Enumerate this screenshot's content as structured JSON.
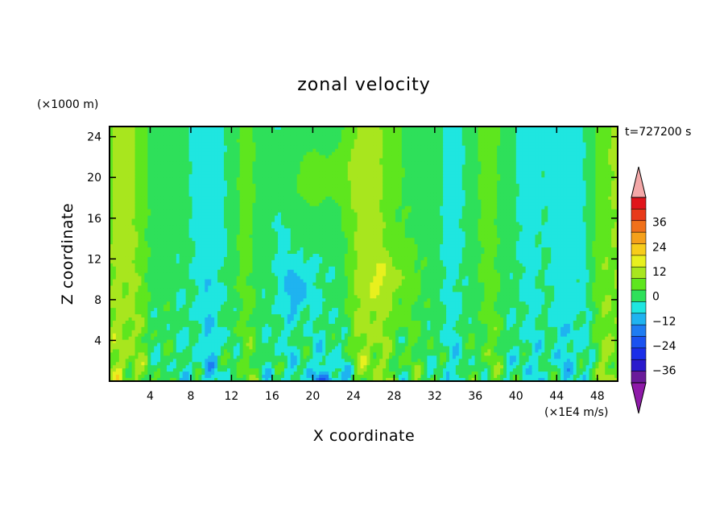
{
  "chart_data": {
    "type": "heatmap",
    "title": "zonal velocity",
    "xlabel": "X coordinate",
    "ylabel": "Z coordinate",
    "x_scale_note": "(×1E4 m/s)",
    "y_scale_note": "(×1000 m)",
    "time_label": "t=727200 s",
    "x_ticks": [
      4,
      8,
      12,
      16,
      20,
      24,
      28,
      32,
      36,
      40,
      44,
      48
    ],
    "y_ticks": [
      4,
      8,
      12,
      16,
      20,
      24
    ],
    "xlim": [
      0,
      50
    ],
    "ylim": [
      0,
      25
    ],
    "colorbar": {
      "tick_values": [
        36,
        24,
        12,
        0,
        -12,
        -24,
        -36
      ],
      "tick_labels": [
        "36",
        "24",
        "12",
        "0",
        "−12",
        "−24",
        "−36"
      ],
      "levels": [
        -42,
        -36,
        -30,
        -24,
        -18,
        -12,
        -6,
        0,
        6,
        12,
        18,
        24,
        30,
        36,
        42
      ],
      "colors": [
        "#6a1b9a",
        "#2a1acc",
        "#1a2ee8",
        "#1a52f0",
        "#1e7cf2",
        "#1fb3f0",
        "#1fe6e0",
        "#2ee05a",
        "#5ee61e",
        "#a8e61e",
        "#e8f01e",
        "#f7cc1a",
        "#f5a01a",
        "#f0701a",
        "#e83a1a",
        "#e0141a"
      ],
      "over_color": "#f4a8a8",
      "under_color": "#8e1aa8"
    },
    "grid": false,
    "legend": "colorbar-right"
  }
}
